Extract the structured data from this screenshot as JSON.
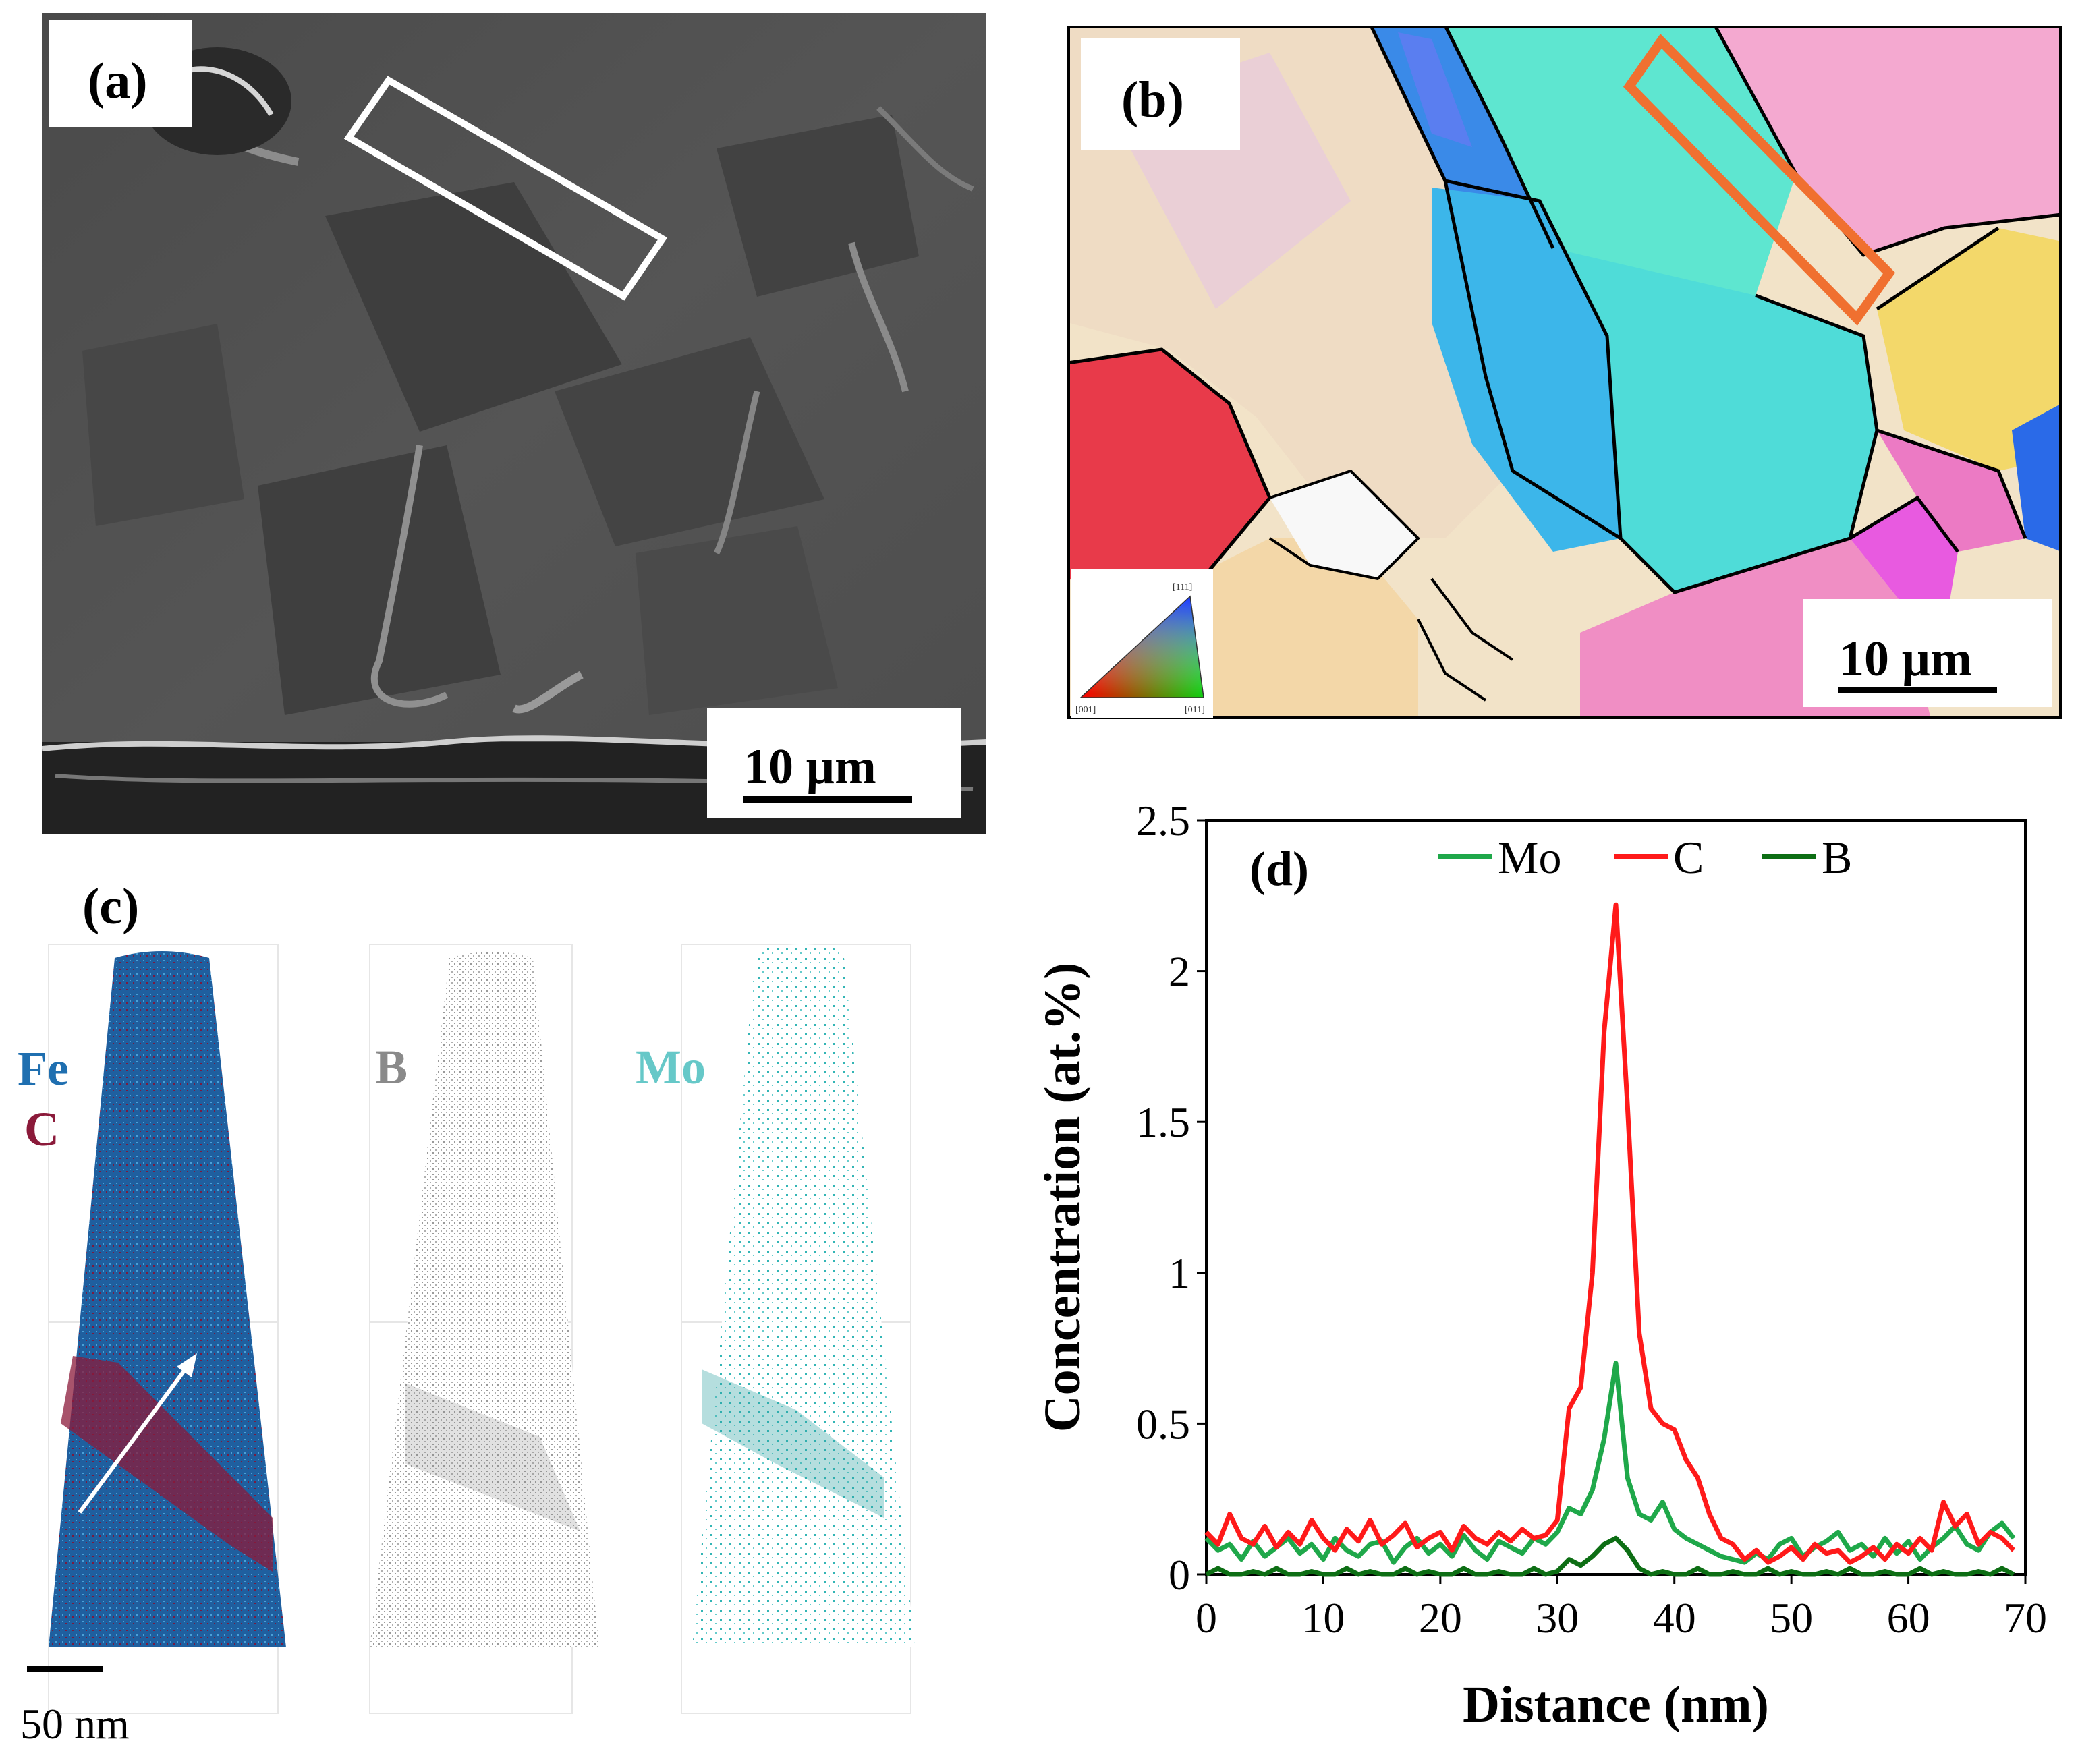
{
  "panels": {
    "a": {
      "label": "(a)",
      "scale_bar_label": "10 µm"
    },
    "b": {
      "label": "(b)",
      "scale_bar_label": "10 µm",
      "ipf_key": {
        "top": "[111]",
        "left": "[001]",
        "right": "[011]"
      }
    },
    "c": {
      "label": "(c)",
      "elements": [
        {
          "symbol": "Fe",
          "color": "#1f6fb0"
        },
        {
          "symbol": "C",
          "color": "#8b1a3a"
        },
        {
          "symbol": "B",
          "color": "#8a8a8a"
        },
        {
          "symbol": "Mo",
          "color": "#66c8c8"
        }
      ],
      "scale_bar_label": "50 nm"
    },
    "d": {
      "label": "(d)"
    }
  },
  "chart_data": {
    "type": "line",
    "title": "(d)",
    "xlabel": "Distance (nm)",
    "ylabel": "Concentration (at.%)",
    "xlim": [
      0,
      70
    ],
    "ylim": [
      0,
      2.5
    ],
    "xticks": [
      0,
      10,
      20,
      30,
      40,
      50,
      60,
      70
    ],
    "yticks": [
      0,
      0.5,
      1,
      1.5,
      2,
      2.5
    ],
    "xtick_labels": [
      "0",
      "10",
      "20",
      "30",
      "40",
      "50",
      "60",
      "70"
    ],
    "ytick_labels": [
      "0",
      "0.5",
      "1",
      "1.5",
      "2",
      "2.5"
    ],
    "legend_position": "top-right",
    "x": [
      0,
      1,
      2,
      3,
      4,
      5,
      6,
      7,
      8,
      9,
      10,
      11,
      12,
      13,
      14,
      15,
      16,
      17,
      18,
      19,
      20,
      21,
      22,
      23,
      24,
      25,
      26,
      27,
      28,
      29,
      30,
      31,
      32,
      33,
      34,
      35,
      36,
      37,
      38,
      39,
      40,
      41,
      42,
      43,
      44,
      45,
      46,
      47,
      48,
      49,
      50,
      51,
      52,
      53,
      54,
      55,
      56,
      57,
      58,
      59,
      60,
      61,
      62,
      63,
      64,
      65,
      66,
      67,
      68,
      69
    ],
    "series": [
      {
        "name": "Mo",
        "color": "#1fa84a",
        "values": [
          0.12,
          0.08,
          0.1,
          0.05,
          0.11,
          0.06,
          0.09,
          0.12,
          0.07,
          0.1,
          0.05,
          0.12,
          0.08,
          0.06,
          0.1,
          0.11,
          0.04,
          0.09,
          0.12,
          0.07,
          0.1,
          0.06,
          0.13,
          0.08,
          0.05,
          0.11,
          0.09,
          0.07,
          0.12,
          0.1,
          0.14,
          0.22,
          0.2,
          0.28,
          0.45,
          0.7,
          0.32,
          0.2,
          0.18,
          0.24,
          0.15,
          0.12,
          0.1,
          0.08,
          0.06,
          0.05,
          0.04,
          0.07,
          0.05,
          0.1,
          0.12,
          0.06,
          0.09,
          0.11,
          0.14,
          0.08,
          0.1,
          0.06,
          0.12,
          0.07,
          0.11,
          0.05,
          0.09,
          0.12,
          0.16,
          0.1,
          0.08,
          0.14,
          0.17,
          0.12
        ]
      },
      {
        "name": "C",
        "color": "#ff1a1a",
        "values": [
          0.14,
          0.1,
          0.2,
          0.12,
          0.1,
          0.16,
          0.09,
          0.14,
          0.1,
          0.18,
          0.12,
          0.08,
          0.15,
          0.11,
          0.18,
          0.1,
          0.13,
          0.17,
          0.09,
          0.12,
          0.14,
          0.08,
          0.16,
          0.12,
          0.1,
          0.14,
          0.11,
          0.15,
          0.12,
          0.13,
          0.18,
          0.55,
          0.62,
          1.0,
          1.8,
          2.22,
          1.55,
          0.8,
          0.55,
          0.5,
          0.48,
          0.38,
          0.32,
          0.2,
          0.12,
          0.1,
          0.05,
          0.08,
          0.04,
          0.06,
          0.09,
          0.05,
          0.1,
          0.07,
          0.08,
          0.04,
          0.06,
          0.09,
          0.05,
          0.1,
          0.07,
          0.12,
          0.08,
          0.24,
          0.16,
          0.2,
          0.1,
          0.14,
          0.12,
          0.08
        ]
      },
      {
        "name": "B",
        "color": "#0d6e14",
        "values": [
          0.0,
          0.02,
          0.0,
          0.0,
          0.01,
          0.0,
          0.02,
          0.0,
          0.0,
          0.01,
          0.0,
          0.0,
          0.02,
          0.0,
          0.01,
          0.0,
          0.0,
          0.02,
          0.0,
          0.01,
          0.0,
          0.0,
          0.02,
          0.0,
          0.0,
          0.01,
          0.0,
          0.0,
          0.02,
          0.0,
          0.01,
          0.05,
          0.03,
          0.06,
          0.1,
          0.12,
          0.08,
          0.02,
          0.0,
          0.01,
          0.0,
          0.0,
          0.02,
          0.0,
          0.0,
          0.01,
          0.0,
          0.0,
          0.02,
          0.0,
          0.01,
          0.0,
          0.0,
          0.01,
          0.0,
          0.02,
          0.0,
          0.0,
          0.01,
          0.0,
          0.0,
          0.02,
          0.0,
          0.01,
          0.0,
          0.0,
          0.01,
          0.0,
          0.02,
          0.0
        ]
      }
    ]
  }
}
